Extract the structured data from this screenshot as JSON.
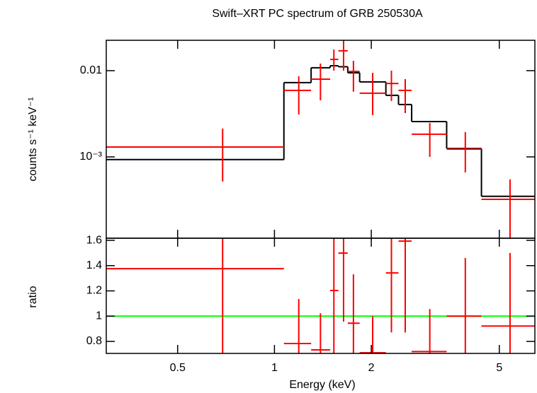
{
  "chart_data": [
    {
      "type": "spectrum",
      "title": "Swift–XRT PC spectrum of GRB 250530A",
      "ylabel": "counts s⁻¹ keV⁻¹",
      "xscale": "log",
      "yscale": "log",
      "xlim": [
        0.3,
        6.45
      ],
      "ylim": [
        0.000114,
        0.0225
      ],
      "yticks": [
        0.01,
        {
          "value": 0.001,
          "label": "10⁻³"
        }
      ],
      "data": {
        "color": "#ff0000",
        "x": [
          0.69,
          1.19,
          1.39,
          1.53,
          1.64,
          1.76,
          2.02,
          2.31,
          2.55,
          3.04,
          3.92,
          5.4
        ],
        "x_low": [
          0.3,
          1.07,
          1.3,
          1.49,
          1.58,
          1.69,
          1.84,
          2.22,
          2.43,
          2.67,
          3.43,
          4.4
        ],
        "x_high": [
          1.07,
          1.3,
          1.49,
          1.58,
          1.69,
          1.84,
          2.22,
          2.43,
          2.67,
          3.43,
          4.4,
          6.45
        ],
        "y": [
          0.0013,
          0.0059,
          0.00797,
          0.0135,
          0.017,
          0.0098,
          0.00547,
          0.0071,
          0.0059,
          0.00183,
          0.00123,
          0.000322
        ],
        "y_low": [
          0.000517,
          0.0031,
          0.00453,
          0.01,
          0.01,
          0.0057,
          0.00305,
          0.00445,
          0.00322,
          0.001,
          0.00066,
          0.000114
        ],
        "y_high": [
          0.00213,
          0.0086,
          0.0121,
          0.0176,
          0.0225,
          0.013,
          0.00945,
          0.01,
          0.00797,
          0.00247,
          0.00194,
          0.000547
        ]
      },
      "model": {
        "color": "#000000",
        "edges": [
          0.3,
          1.07,
          1.3,
          1.49,
          1.58,
          1.69,
          1.84,
          2.22,
          2.43,
          2.67,
          3.43,
          4.4,
          6.45
        ],
        "values": [
          0.00093,
          0.00726,
          0.0108,
          0.0114,
          0.0111,
          0.00945,
          0.0074,
          0.00517,
          0.00405,
          0.00257,
          0.00125,
          0.000349
        ]
      }
    },
    {
      "type": "ratio",
      "xlabel": "Energy (keV)",
      "ylabel": "ratio",
      "xscale": "log",
      "xlim": [
        0.3,
        6.45
      ],
      "ylim": [
        0.705,
        1.617
      ],
      "xticks": [
        0.5,
        1,
        2,
        5
      ],
      "yticks": [
        0.8,
        1,
        1.2,
        1.4,
        1.6
      ],
      "reference": {
        "value": 1,
        "color": "#00ff00"
      },
      "data": {
        "color": "#ff0000",
        "y": [
          1.376,
          0.783,
          0.733,
          1.203,
          1.499,
          0.944,
          0.71,
          1.342,
          1.594,
          0.72,
          1.0,
          0.922
        ],
        "y_low": [
          0.705,
          0.705,
          0.705,
          0.705,
          0.956,
          0.705,
          0.705,
          0.871,
          0.871,
          0.705,
          0.705,
          0.705
        ],
        "y_high": [
          1.617,
          1.135,
          1.023,
          1.617,
          1.617,
          1.331,
          1.0,
          1.617,
          1.617,
          1.056,
          1.46,
          1.5
        ]
      }
    }
  ]
}
